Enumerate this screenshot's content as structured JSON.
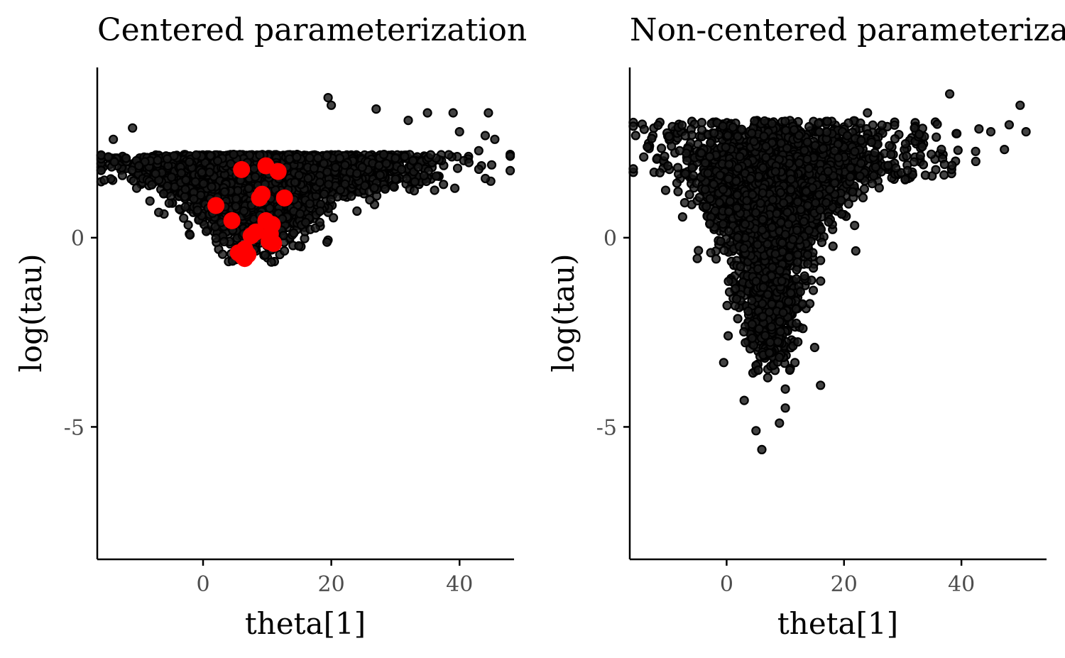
{
  "chart_data": [
    {
      "type": "scatter",
      "title": "Centered parameterization",
      "xlabel": "theta[1]",
      "ylabel": "log(tau)",
      "xlim": [
        -16.5,
        48.5
      ],
      "ylim": [
        -8.5,
        4.5
      ],
      "xticks": [
        0,
        20,
        40
      ],
      "yticks": [
        -5,
        0
      ],
      "xtick_labels": [
        "0",
        "20",
        "40"
      ],
      "ytick_labels": [
        "-5",
        "0"
      ],
      "grid": false,
      "colors": {
        "posterior": "#1a1a1a",
        "divergent": "#ff0000"
      },
      "series": [
        {
          "role": "posterior draws",
          "n": 4000,
          "seed": 7,
          "shape": "cloud",
          "outliers": [
            [
              -14,
              2.6
            ],
            [
              -11,
              2.9
            ],
            [
              -12,
              2.1
            ],
            [
              -10,
              1.9
            ],
            [
              -8,
              1.4
            ],
            [
              27,
              3.4
            ],
            [
              32,
              3.1
            ],
            [
              35,
              3.3
            ],
            [
              39,
              3.3
            ],
            [
              40,
              2.8
            ],
            [
              44.5,
              3.3
            ],
            [
              44,
              2.7
            ],
            [
              45.5,
              2.6
            ],
            [
              43,
              2.3
            ],
            [
              19.5,
              3.7
            ],
            [
              20,
              3.5
            ],
            [
              30,
              2.1
            ],
            [
              24,
              1.7
            ],
            [
              26,
              1.0
            ]
          ]
        },
        {
          "role": "divergent transitions",
          "points": [
            [
              6,
              1.8
            ],
            [
              9.8,
              1.9
            ],
            [
              11.7,
              1.75
            ],
            [
              9.2,
              1.15
            ],
            [
              8.8,
              1.05
            ],
            [
              12.7,
              1.05
            ],
            [
              2,
              0.85
            ],
            [
              4.5,
              0.45
            ],
            [
              8.2,
              0.15
            ],
            [
              10.8,
              0.35
            ],
            [
              6.5,
              -0.3
            ],
            [
              7.5,
              0.05
            ],
            [
              11,
              -0.15
            ],
            [
              10.3,
              -0.1
            ],
            [
              9.8,
              0.45
            ],
            [
              5.5,
              -0.4
            ],
            [
              6.2,
              -0.5
            ],
            [
              7,
              -0.45
            ],
            [
              6.5,
              -0.55
            ],
            [
              10.5,
              0.1
            ]
          ]
        }
      ]
    },
    {
      "type": "scatter",
      "title": "Non-centered parameterization",
      "xlabel": "theta[1]",
      "ylabel": "log(tau)",
      "xlim": [
        -16.5,
        54.5
      ],
      "ylim": [
        -8.5,
        4.5
      ],
      "xticks": [
        0,
        20,
        40
      ],
      "yticks": [
        -5,
        0
      ],
      "xtick_labels": [
        "0",
        "20",
        "40"
      ],
      "ytick_labels": [
        "-5",
        "0"
      ],
      "grid": false,
      "colors": {
        "posterior": "#1a1a1a"
      },
      "series": [
        {
          "role": "posterior draws",
          "n": 4000,
          "seed": 13,
          "shape": "funnel",
          "outliers": [
            [
              -13.5,
              2.4
            ],
            [
              -10,
              1.9
            ],
            [
              -8,
              2.3
            ],
            [
              -7.5,
              0.55
            ],
            [
              -5,
              -0.55
            ],
            [
              38,
              3.8
            ],
            [
              50,
              3.5
            ],
            [
              51,
              2.8
            ],
            [
              45,
              2.8
            ],
            [
              32,
              2.9
            ],
            [
              24,
              3.3
            ],
            [
              28,
              2.2
            ],
            [
              22,
              -0.35
            ],
            [
              16,
              -0.6
            ],
            [
              16,
              -3.9
            ],
            [
              5,
              -5.1
            ],
            [
              6,
              -5.6
            ],
            [
              9,
              -4.9
            ],
            [
              10,
              -4.5
            ],
            [
              3,
              -4.3
            ],
            [
              -0.5,
              -3.3
            ],
            [
              7,
              -3.7
            ],
            [
              15,
              -2.9
            ],
            [
              13,
              -2.4
            ],
            [
              10,
              -4.0
            ]
          ]
        }
      ]
    }
  ]
}
